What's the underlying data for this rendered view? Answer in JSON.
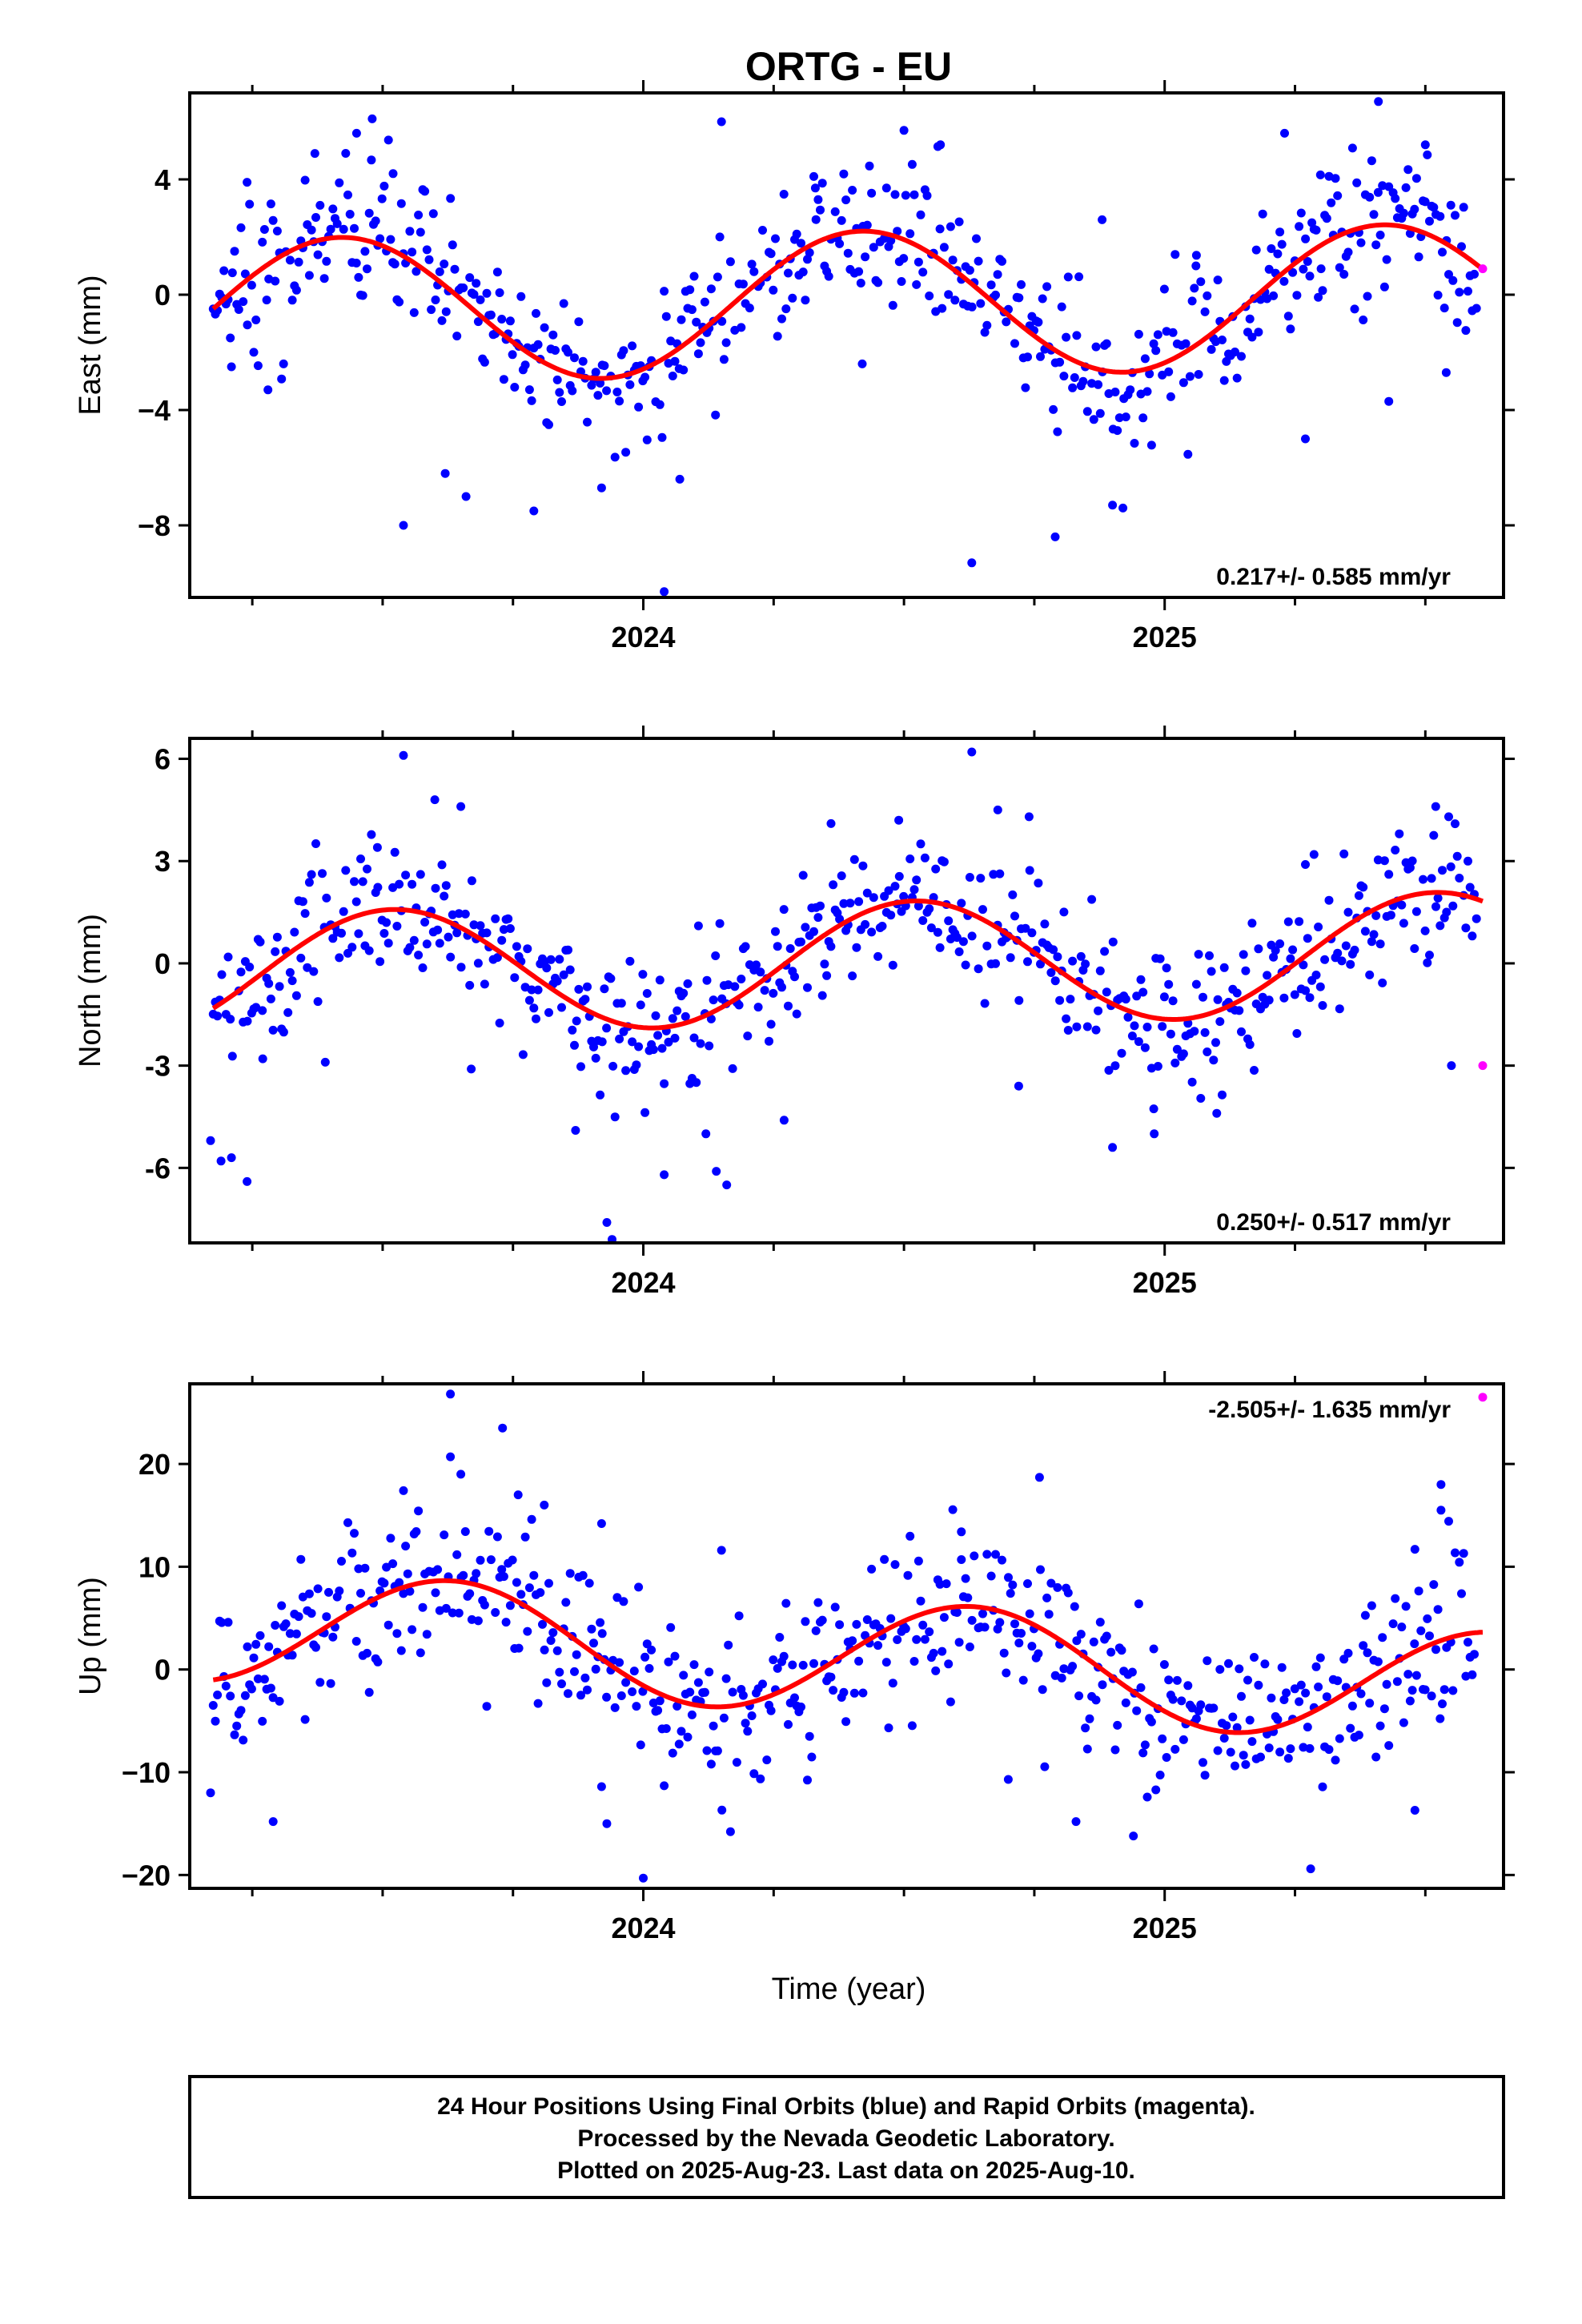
{
  "title": "ORTG - EU",
  "x_axis_label": "Time (year)",
  "footer": [
    "24 Hour Positions Using Final Orbits (blue) and Rapid Orbits (magenta).",
    "Processed by the Nevada Geodetic Laboratory.",
    "Plotted on 2025-Aug-23. Last data on 2025-Aug-10."
  ],
  "colors": {
    "final": "#0000ff",
    "rapid": "#ff00ff",
    "model": "#ff0000"
  },
  "chart_data": [
    {
      "type": "scatter",
      "component": "East",
      "ylabel": "East (mm)",
      "xlim": [
        2023.13,
        2025.65
      ],
      "ylim": [
        -10.5,
        7.0
      ],
      "yticks": [
        4,
        0,
        -4,
        -8
      ],
      "ytick_labels": [
        "4",
        "0",
        "−4",
        "−8"
      ],
      "xticks": [
        2024,
        2025
      ],
      "xtick_labels": [
        "2024",
        "2025"
      ],
      "rate_text": "0.217+/- 0.585 mm/yr",
      "rate_position": "bottom-right",
      "model": {
        "offset": -0.3,
        "rate": 0.217,
        "amplitude": 2.5,
        "peak_year": 2024.42
      },
      "noise_sd": 1.3,
      "rapid_points": [
        [
          2025.61,
          0.9
        ]
      ],
      "outliers": [
        [
          2023.48,
          6.1
        ],
        [
          2023.52,
          4.2
        ],
        [
          2023.37,
          4.9
        ],
        [
          2023.54,
          -8.0
        ],
        [
          2023.45,
          5.6
        ],
        [
          2024.04,
          -10.3
        ],
        [
          2024.07,
          -6.4
        ],
        [
          2024.15,
          6.0
        ],
        [
          2024.63,
          -9.3
        ],
        [
          2024.79,
          -8.4
        ],
        [
          2024.9,
          -7.3
        ],
        [
          2025.41,
          6.7
        ],
        [
          2025.27,
          -5.0
        ],
        [
          2025.54,
          -2.7
        ],
        [
          2025.43,
          -3.7
        ],
        [
          2023.79,
          -7.5
        ],
        [
          2023.66,
          -7.0
        ],
        [
          2023.62,
          -6.2
        ],
        [
          2024.5,
          5.7
        ],
        [
          2024.57,
          5.2
        ],
        [
          2024.33,
          3.7
        ],
        [
          2025.23,
          5.6
        ],
        [
          2025.5,
          5.2
        ],
        [
          2024.92,
          -7.4
        ],
        [
          2023.31,
          -2.4
        ],
        [
          2023.21,
          -2.5
        ],
        [
          2023.92,
          -6.7
        ],
        [
          2024.42,
          -2.4
        ],
        [
          2025.06,
          1.0
        ],
        [
          2025.3,
          0.9
        ],
        [
          2023.24,
          3.9
        ],
        [
          2023.28,
          -3.3
        ],
        [
          2024.88,
          2.6
        ]
      ]
    },
    {
      "type": "scatter",
      "component": "North",
      "ylabel": "North (mm)",
      "xlim": [
        2023.13,
        2025.65
      ],
      "ylim": [
        -8.2,
        6.6
      ],
      "yticks": [
        6,
        3,
        0,
        -3,
        -6
      ],
      "ytick_labels": [
        "6",
        "3",
        "0",
        "-3",
        "-6"
      ],
      "xticks": [
        2024,
        2025
      ],
      "xtick_labels": [
        "2024",
        "2025"
      ],
      "rate_text": "0.250+/- 0.517 mm/yr",
      "rate_position": "bottom-right",
      "model": {
        "offset": 0.0,
        "rate": 0.25,
        "amplitude": 1.8,
        "peak_year": 2024.52
      },
      "noise_sd": 1.1,
      "rapid_points": [
        [
          2025.61,
          -3.0
        ]
      ],
      "outliers": [
        [
          2023.54,
          6.1
        ],
        [
          2023.6,
          4.8
        ],
        [
          2023.65,
          4.6
        ],
        [
          2024.63,
          6.2
        ],
        [
          2023.93,
          -7.6
        ],
        [
          2023.94,
          -8.1
        ],
        [
          2024.04,
          -6.2
        ],
        [
          2024.16,
          -6.5
        ],
        [
          2024.14,
          -6.1
        ],
        [
          2024.27,
          -4.6
        ],
        [
          2024.68,
          4.5
        ],
        [
          2025.1,
          -4.4
        ],
        [
          2024.9,
          -5.4
        ],
        [
          2024.98,
          -5.0
        ],
        [
          2025.52,
          4.6
        ],
        [
          2025.55,
          -3.0
        ],
        [
          2023.17,
          -5.2
        ],
        [
          2023.19,
          -5.8
        ],
        [
          2023.21,
          -5.7
        ],
        [
          2023.24,
          -6.4
        ],
        [
          2023.27,
          -2.8
        ],
        [
          2023.49,
          3.4
        ],
        [
          2024.36,
          4.1
        ],
        [
          2024.49,
          4.2
        ],
        [
          2024.74,
          4.3
        ],
        [
          2025.27,
          2.9
        ],
        [
          2023.39,
          -2.9
        ],
        [
          2023.67,
          -3.1
        ],
        [
          2023.87,
          -4.9
        ],
        [
          2024.12,
          -5.0
        ],
        [
          2024.72,
          -3.6
        ],
        [
          2025.45,
          3.8
        ]
      ]
    },
    {
      "type": "scatter",
      "component": "Up",
      "ylabel": "Up (mm)",
      "xlim": [
        2023.13,
        2025.65
      ],
      "ylim": [
        -21.3,
        27.8
      ],
      "yticks": [
        20,
        10,
        0,
        -10,
        -20
      ],
      "ytick_labels": [
        "20",
        "10",
        "0",
        "−10",
        "−20"
      ],
      "xticks": [
        2024,
        2025
      ],
      "xtick_labels": [
        "2024",
        "2025"
      ],
      "rate_text": "-2.505+/- 1.635 mm/yr",
      "rate_position": "top-right",
      "model": {
        "offset": 1.2,
        "rate": -2.505,
        "amplitude": 5.5,
        "peak_year": 2024.63
      },
      "noise_sd": 4.0,
      "rapid_points": [
        [
          2025.61,
          26.5
        ]
      ],
      "outliers": [
        [
          2023.63,
          26.8
        ],
        [
          2023.73,
          23.5
        ],
        [
          2023.63,
          20.7
        ],
        [
          2023.65,
          19.0
        ],
        [
          2023.54,
          17.4
        ],
        [
          2023.81,
          16.0
        ],
        [
          2023.76,
          17.0
        ],
        [
          2023.92,
          14.2
        ],
        [
          2024.0,
          -20.3
        ],
        [
          2024.76,
          18.7
        ],
        [
          2025.28,
          -19.4
        ],
        [
          2025.53,
          18.0
        ],
        [
          2025.53,
          15.5
        ],
        [
          2024.83,
          -14.8
        ],
        [
          2024.94,
          -16.2
        ],
        [
          2023.92,
          -11.4
        ],
        [
          2023.93,
          -15.0
        ],
        [
          2025.48,
          -13.7
        ],
        [
          2023.29,
          -14.8
        ],
        [
          2024.15,
          11.6
        ],
        [
          2023.17,
          -12.0
        ],
        [
          2025.48,
          11.7
        ],
        [
          2024.7,
          -10.7
        ],
        [
          2024.61,
          13.4
        ]
      ]
    }
  ]
}
